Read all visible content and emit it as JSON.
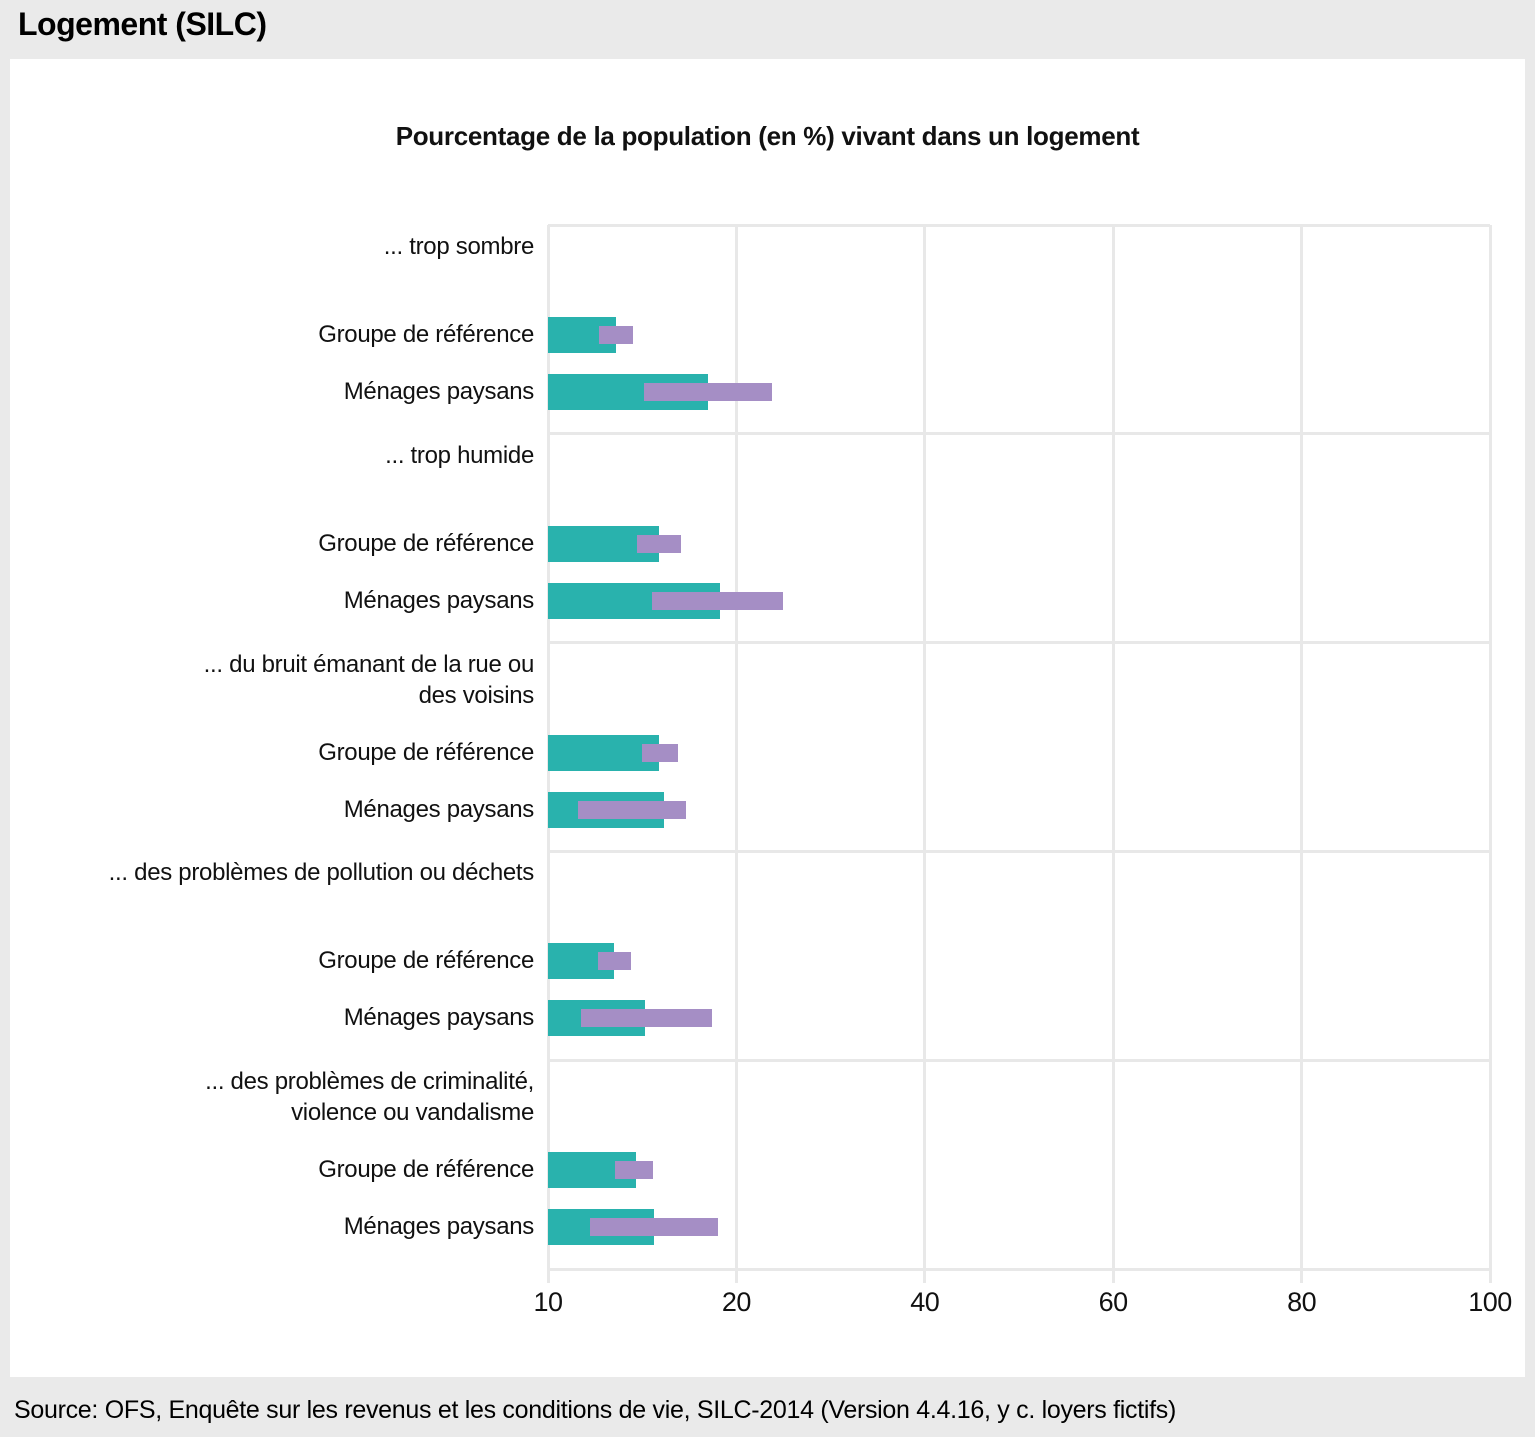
{
  "page": {
    "title": "Logement (SILC)",
    "source": "Source: OFS, Enquête sur les revenus et les conditions de vie, SILC-2014 (Version 4.4.16, y c. loyers fictifs)"
  },
  "chart_data": {
    "type": "bar",
    "orientation": "horizontal",
    "title": "Pourcentage de la population (en %) vivant dans un logement",
    "xlabel": "",
    "ylabel": "",
    "xlim": [
      0,
      100
    ],
    "x_tick_labels": [
      "10",
      "20",
      "40",
      "60",
      "80",
      "100"
    ],
    "grid": true,
    "legend_position": "none",
    "colors": {
      "estimate_bar": "#29B2AD",
      "confidence_interval_bar": "#A58EC5",
      "gridline": "#E8E8E8",
      "background": "#EAEAEA",
      "panel": "#FFFFFF"
    },
    "series_note": "teal bar = point estimate (% of population); purple bar = confidence interval around estimate",
    "groups": [
      {
        "category": "... trop sombre",
        "category_lines": [
          "... trop sombre"
        ],
        "rows": [
          {
            "label": "Groupe de référence",
            "value": 7.2,
            "ci": [
              5.4,
              9.0
            ]
          },
          {
            "label": "Ménages paysans",
            "value": 17.0,
            "ci": [
              10.2,
              23.8
            ]
          }
        ]
      },
      {
        "category": "... trop humide",
        "category_lines": [
          "... trop humide"
        ],
        "rows": [
          {
            "label": "Groupe de référence",
            "value": 11.8,
            "ci": [
              9.4,
              14.1
            ]
          },
          {
            "label": "Ménages paysans",
            "value": 18.3,
            "ci": [
              11.0,
              25.0
            ]
          }
        ]
      },
      {
        "category": "... du bruit émanant de la rue ou des voisins",
        "category_lines": [
          "... du bruit émanant de la rue ou",
          "des voisins"
        ],
        "rows": [
          {
            "label": "Groupe de référence",
            "value": 11.8,
            "ci": [
              10.0,
              13.8
            ]
          },
          {
            "label": "Ménages paysans",
            "value": 12.3,
            "ci": [
              3.2,
              14.6
            ]
          }
        ]
      },
      {
        "category": "... des problèmes de pollution ou déchets",
        "category_lines": [
          "... des problèmes de pollution ou déchets"
        ],
        "rows": [
          {
            "label": "Groupe de référence",
            "value": 7.0,
            "ci": [
              5.3,
              8.8
            ]
          },
          {
            "label": "Ménages paysans",
            "value": 10.3,
            "ci": [
              3.5,
              17.4
            ]
          }
        ]
      },
      {
        "category": "... des problèmes de criminalité, violence ou vandalisme",
        "category_lines": [
          "... des problèmes de criminalité,",
          "violence ou vandalisme"
        ],
        "rows": [
          {
            "label": "Groupe de référence",
            "value": 9.3,
            "ci": [
              7.1,
              11.1
            ]
          },
          {
            "label": "Ménages paysans",
            "value": 11.3,
            "ci": [
              4.5,
              18.0
            ]
          }
        ]
      }
    ]
  }
}
